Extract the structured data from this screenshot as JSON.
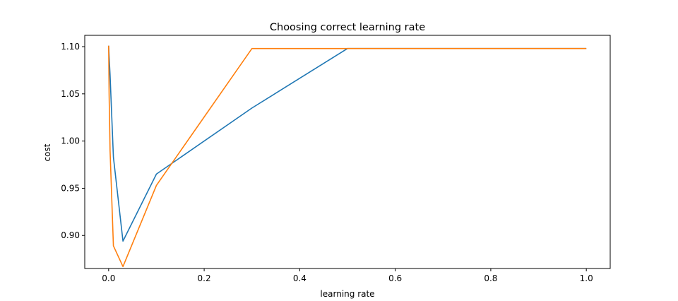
{
  "chart_data": {
    "type": "line",
    "title": "Choosing correct learning rate",
    "xlabel": "learning rate",
    "ylabel": "cost",
    "xlim": [
      -0.05,
      1.05
    ],
    "ylim": [
      0.865,
      1.112
    ],
    "grid": false,
    "x_ticks": [
      0.0,
      0.2,
      0.4,
      0.6,
      0.8,
      1.0
    ],
    "x_tick_labels": [
      "0.0",
      "0.2",
      "0.4",
      "0.6",
      "0.8",
      "1.0"
    ],
    "y_ticks": [
      0.9,
      0.95,
      1.0,
      1.05,
      1.1
    ],
    "y_tick_labels": [
      "0.90",
      "0.95",
      "1.00",
      "1.05",
      "1.10"
    ],
    "series": [
      {
        "color": "#1f77b4",
        "x": [
          0.0,
          0.001,
          0.003,
          0.01,
          0.03,
          0.1,
          0.3,
          0.5,
          1.0
        ],
        "y": [
          1.101,
          1.09,
          1.07,
          0.983,
          0.894,
          0.965,
          1.035,
          1.098,
          1.098
        ]
      },
      {
        "color": "#ff7f0e",
        "x": [
          0.0,
          0.001,
          0.003,
          0.01,
          0.03,
          0.1,
          0.3,
          0.5,
          1.0
        ],
        "y": [
          1.101,
          1.05,
          0.99,
          0.889,
          0.867,
          0.953,
          1.098,
          1.098,
          1.098
        ]
      }
    ]
  }
}
